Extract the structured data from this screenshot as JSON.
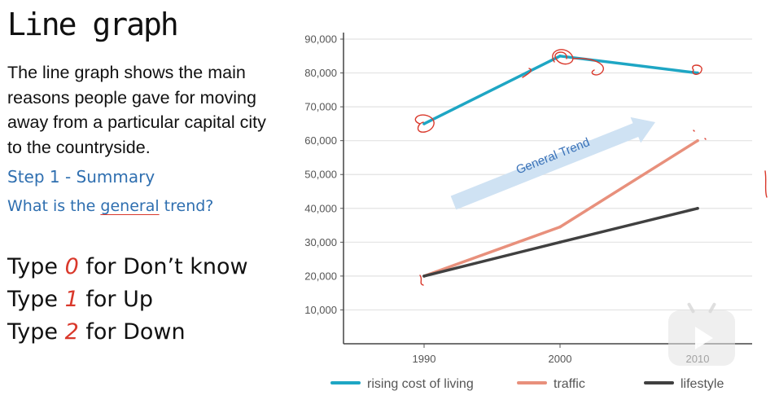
{
  "slide": {
    "title": "Line graph",
    "description": "The line graph shows the main reasons people gave for moving away from a particular capital city to the countryside.",
    "step": "Step 1 - Summary",
    "question_prefix": "What is the ",
    "question_keyword": "general",
    "question_suffix": " trend?",
    "options": [
      {
        "pre": "Type ",
        "num": "0",
        "post": " for Don’t know"
      },
      {
        "pre": "Type ",
        "num": "1",
        "post": " for Up"
      },
      {
        "pre": "Type ",
        "num": "2",
        "post": " for Down"
      }
    ]
  },
  "chart_data": {
    "type": "line",
    "x": [
      1990,
      2000,
      2010
    ],
    "x_tick_labels": [
      "1990",
      "2000",
      "2010"
    ],
    "ylim": [
      0,
      90000
    ],
    "y_ticks": [
      10000,
      20000,
      30000,
      40000,
      50000,
      60000,
      70000,
      80000,
      90000
    ],
    "y_tick_labels": [
      "10,000",
      "20,000",
      "30,000",
      "40,000",
      "50,000",
      "60,000",
      "70,000",
      "80,000",
      "90,000"
    ],
    "grid": true,
    "legend_position": "bottom",
    "series": [
      {
        "name": "rising cost of living",
        "values": [
          65000,
          85000,
          80000
        ],
        "color": "#1ea6c4"
      },
      {
        "name": "traffic",
        "values": [
          20000,
          34500,
          60000
        ],
        "color": "#e8907c"
      },
      {
        "name": "lifestyle",
        "values": [
          20000,
          30000,
          40000
        ],
        "color": "#404040"
      }
    ],
    "annotation": "General Trend"
  },
  "colors": {
    "accent_blue": "#2f6fb0",
    "accent_red": "#d9382b",
    "arrow": "#cfe2f3"
  },
  "player": {
    "icon": "play-icon"
  }
}
